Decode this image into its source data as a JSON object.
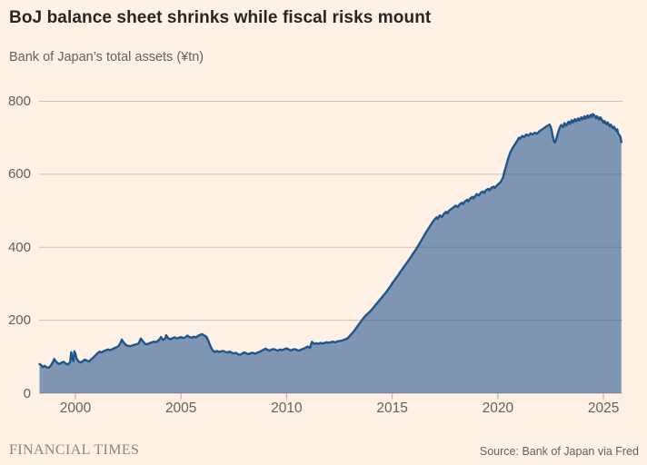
{
  "chart_data": {
    "type": "area",
    "title": "BoJ balance sheet shrinks while fiscal risks mount",
    "subtitle": "Bank of Japan’s total assets (¥tn)",
    "unit": "¥tn",
    "xlim": [
      1998.28,
      2025.9
    ],
    "ylim": [
      0,
      800
    ],
    "xticks": [
      2000,
      2005,
      2010,
      2015,
      2020,
      2025
    ],
    "yticks": [
      0,
      200,
      400,
      600,
      800
    ],
    "grid": "horizontal",
    "legend": "none",
    "theme": {
      "background": "#FFF1E5",
      "line": "#1F558B",
      "fill": "#7E96B3",
      "grid": "rgba(94,84,73,0.32)",
      "tick": "#B0A79C",
      "text": "#66605C",
      "title_text": "#2A2521",
      "brand_text": "#8E8577"
    },
    "series": [
      {
        "name": "Bank of Japan total assets",
        "points": [
          [
            1998.3,
            80
          ],
          [
            1998.4,
            76
          ],
          [
            1998.45,
            72
          ],
          [
            1998.55,
            75
          ],
          [
            1998.65,
            71
          ],
          [
            1998.75,
            70
          ],
          [
            1998.85,
            77
          ],
          [
            1998.95,
            87
          ],
          [
            1999.0,
            94
          ],
          [
            1999.05,
            89
          ],
          [
            1999.15,
            83
          ],
          [
            1999.25,
            80
          ],
          [
            1999.35,
            84
          ],
          [
            1999.45,
            86
          ],
          [
            1999.55,
            81
          ],
          [
            1999.65,
            79
          ],
          [
            1999.75,
            85
          ],
          [
            1999.8,
            112
          ],
          [
            1999.85,
            97
          ],
          [
            1999.9,
            88
          ],
          [
            1999.95,
            115
          ],
          [
            2000.0,
            108
          ],
          [
            2000.05,
            96
          ],
          [
            2000.15,
            87
          ],
          [
            2000.25,
            84
          ],
          [
            2000.35,
            88
          ],
          [
            2000.45,
            92
          ],
          [
            2000.55,
            89
          ],
          [
            2000.65,
            87
          ],
          [
            2000.75,
            93
          ],
          [
            2000.85,
            98
          ],
          [
            2000.95,
            104
          ],
          [
            2001.05,
            110
          ],
          [
            2001.15,
            114
          ],
          [
            2001.25,
            112
          ],
          [
            2001.35,
            116
          ],
          [
            2001.45,
            118
          ],
          [
            2001.55,
            120
          ],
          [
            2001.65,
            118
          ],
          [
            2001.75,
            121
          ],
          [
            2001.85,
            124
          ],
          [
            2001.95,
            126
          ],
          [
            2002.05,
            130
          ],
          [
            2002.15,
            140
          ],
          [
            2002.2,
            147
          ],
          [
            2002.3,
            138
          ],
          [
            2002.4,
            132
          ],
          [
            2002.5,
            130
          ],
          [
            2002.6,
            129
          ],
          [
            2002.7,
            131
          ],
          [
            2002.8,
            133
          ],
          [
            2002.9,
            134
          ],
          [
            2003.0,
            137
          ],
          [
            2003.1,
            150
          ],
          [
            2003.2,
            142
          ],
          [
            2003.3,
            135
          ],
          [
            2003.4,
            134
          ],
          [
            2003.5,
            137
          ],
          [
            2003.6,
            139
          ],
          [
            2003.7,
            141
          ],
          [
            2003.8,
            140
          ],
          [
            2003.9,
            143
          ],
          [
            2004.0,
            149
          ],
          [
            2004.05,
            154
          ],
          [
            2004.15,
            146
          ],
          [
            2004.25,
            150
          ],
          [
            2004.3,
            159
          ],
          [
            2004.4,
            150
          ],
          [
            2004.5,
            148
          ],
          [
            2004.6,
            151
          ],
          [
            2004.7,
            153
          ],
          [
            2004.8,
            150
          ],
          [
            2004.9,
            152
          ],
          [
            2005.0,
            154
          ],
          [
            2005.1,
            151
          ],
          [
            2005.2,
            153
          ],
          [
            2005.3,
            158
          ],
          [
            2005.4,
            154
          ],
          [
            2005.5,
            152
          ],
          [
            2005.6,
            155
          ],
          [
            2005.7,
            153
          ],
          [
            2005.8,
            157
          ],
          [
            2005.9,
            160
          ],
          [
            2006.0,
            162
          ],
          [
            2006.1,
            158
          ],
          [
            2006.2,
            155
          ],
          [
            2006.3,
            143
          ],
          [
            2006.4,
            128
          ],
          [
            2006.5,
            117
          ],
          [
            2006.6,
            113
          ],
          [
            2006.7,
            116
          ],
          [
            2006.8,
            113
          ],
          [
            2006.9,
            115
          ],
          [
            2007.0,
            116
          ],
          [
            2007.1,
            113
          ],
          [
            2007.2,
            112
          ],
          [
            2007.3,
            114
          ],
          [
            2007.4,
            111
          ],
          [
            2007.5,
            109
          ],
          [
            2007.6,
            111
          ],
          [
            2007.7,
            107
          ],
          [
            2007.8,
            105
          ],
          [
            2007.9,
            109
          ],
          [
            2008.0,
            112
          ],
          [
            2008.1,
            109
          ],
          [
            2008.2,
            107
          ],
          [
            2008.3,
            110
          ],
          [
            2008.4,
            111
          ],
          [
            2008.5,
            108
          ],
          [
            2008.6,
            111
          ],
          [
            2008.7,
            113
          ],
          [
            2008.8,
            116
          ],
          [
            2008.9,
            119
          ],
          [
            2009.0,
            122
          ],
          [
            2009.1,
            119
          ],
          [
            2009.2,
            117
          ],
          [
            2009.3,
            120
          ],
          [
            2009.4,
            121
          ],
          [
            2009.5,
            118
          ],
          [
            2009.6,
            117
          ],
          [
            2009.7,
            120
          ],
          [
            2009.8,
            118
          ],
          [
            2009.9,
            121
          ],
          [
            2010.0,
            123
          ],
          [
            2010.1,
            120
          ],
          [
            2010.2,
            117
          ],
          [
            2010.3,
            120
          ],
          [
            2010.4,
            121
          ],
          [
            2010.5,
            118
          ],
          [
            2010.6,
            117
          ],
          [
            2010.7,
            120
          ],
          [
            2010.8,
            122
          ],
          [
            2010.9,
            125
          ],
          [
            2011.0,
            128
          ],
          [
            2011.1,
            124
          ],
          [
            2011.2,
            141
          ],
          [
            2011.3,
            135
          ],
          [
            2011.4,
            137
          ],
          [
            2011.5,
            135
          ],
          [
            2011.6,
            138
          ],
          [
            2011.7,
            136
          ],
          [
            2011.8,
            138
          ],
          [
            2011.9,
            140
          ],
          [
            2012.0,
            138
          ],
          [
            2012.1,
            140
          ],
          [
            2012.2,
            141
          ],
          [
            2012.3,
            139
          ],
          [
            2012.4,
            142
          ],
          [
            2012.5,
            143
          ],
          [
            2012.6,
            144
          ],
          [
            2012.7,
            146
          ],
          [
            2012.8,
            148
          ],
          [
            2012.9,
            151
          ],
          [
            2013.0,
            158
          ],
          [
            2013.1,
            164
          ],
          [
            2013.2,
            171
          ],
          [
            2013.3,
            179
          ],
          [
            2013.4,
            187
          ],
          [
            2013.5,
            195
          ],
          [
            2013.6,
            203
          ],
          [
            2013.7,
            210
          ],
          [
            2013.8,
            216
          ],
          [
            2013.9,
            221
          ],
          [
            2014.0,
            227
          ],
          [
            2014.1,
            234
          ],
          [
            2014.2,
            241
          ],
          [
            2014.3,
            248
          ],
          [
            2014.4,
            255
          ],
          [
            2014.5,
            262
          ],
          [
            2014.6,
            269
          ],
          [
            2014.7,
            276
          ],
          [
            2014.8,
            284
          ],
          [
            2014.9,
            292
          ],
          [
            2015.0,
            301
          ],
          [
            2015.1,
            309
          ],
          [
            2015.2,
            317
          ],
          [
            2015.3,
            325
          ],
          [
            2015.4,
            334
          ],
          [
            2015.5,
            342
          ],
          [
            2015.6,
            350
          ],
          [
            2015.7,
            358
          ],
          [
            2015.8,
            366
          ],
          [
            2015.9,
            375
          ],
          [
            2016.0,
            384
          ],
          [
            2016.1,
            392
          ],
          [
            2016.2,
            401
          ],
          [
            2016.3,
            411
          ],
          [
            2016.4,
            421
          ],
          [
            2016.5,
            431
          ],
          [
            2016.6,
            441
          ],
          [
            2016.7,
            450
          ],
          [
            2016.8,
            459
          ],
          [
            2016.9,
            468
          ],
          [
            2017.0,
            476
          ],
          [
            2017.1,
            482
          ],
          [
            2017.15,
            478
          ],
          [
            2017.25,
            487
          ],
          [
            2017.35,
            483
          ],
          [
            2017.45,
            492
          ],
          [
            2017.55,
            497
          ],
          [
            2017.6,
            493
          ],
          [
            2017.7,
            501
          ],
          [
            2017.8,
            505
          ],
          [
            2017.9,
            509
          ],
          [
            2018.0,
            514
          ],
          [
            2018.1,
            510
          ],
          [
            2018.2,
            518
          ],
          [
            2018.3,
            522
          ],
          [
            2018.35,
            518
          ],
          [
            2018.45,
            526
          ],
          [
            2018.55,
            530
          ],
          [
            2018.6,
            526
          ],
          [
            2018.7,
            534
          ],
          [
            2018.8,
            538
          ],
          [
            2018.85,
            534
          ],
          [
            2018.95,
            542
          ],
          [
            2019.0,
            546
          ],
          [
            2019.1,
            542
          ],
          [
            2019.2,
            550
          ],
          [
            2019.3,
            553
          ],
          [
            2019.35,
            549
          ],
          [
            2019.45,
            557
          ],
          [
            2019.55,
            560
          ],
          [
            2019.6,
            556
          ],
          [
            2019.7,
            563
          ],
          [
            2019.8,
            566
          ],
          [
            2019.85,
            562
          ],
          [
            2019.95,
            569
          ],
          [
            2020.05,
            574
          ],
          [
            2020.15,
            580
          ],
          [
            2020.25,
            592
          ],
          [
            2020.3,
            604
          ],
          [
            2020.4,
            625
          ],
          [
            2020.5,
            645
          ],
          [
            2020.6,
            661
          ],
          [
            2020.7,
            672
          ],
          [
            2020.8,
            681
          ],
          [
            2020.9,
            690
          ],
          [
            2021.0,
            700
          ],
          [
            2021.05,
            697
          ],
          [
            2021.15,
            705
          ],
          [
            2021.25,
            702
          ],
          [
            2021.35,
            709
          ],
          [
            2021.45,
            706
          ],
          [
            2021.55,
            712
          ],
          [
            2021.65,
            709
          ],
          [
            2021.75,
            714
          ],
          [
            2021.85,
            711
          ],
          [
            2021.95,
            717
          ],
          [
            2022.05,
            721
          ],
          [
            2022.15,
            725
          ],
          [
            2022.25,
            729
          ],
          [
            2022.35,
            733
          ],
          [
            2022.45,
            736
          ],
          [
            2022.5,
            730
          ],
          [
            2022.55,
            720
          ],
          [
            2022.6,
            704
          ],
          [
            2022.65,
            692
          ],
          [
            2022.7,
            687
          ],
          [
            2022.75,
            694
          ],
          [
            2022.8,
            703
          ],
          [
            2022.85,
            714
          ],
          [
            2022.9,
            723
          ],
          [
            2022.95,
            730
          ],
          [
            2023.0,
            735
          ],
          [
            2023.1,
            729
          ],
          [
            2023.15,
            740
          ],
          [
            2023.25,
            734
          ],
          [
            2023.35,
            744
          ],
          [
            2023.4,
            738
          ],
          [
            2023.5,
            748
          ],
          [
            2023.55,
            742
          ],
          [
            2023.65,
            751
          ],
          [
            2023.7,
            745
          ],
          [
            2023.8,
            753
          ],
          [
            2023.85,
            747
          ],
          [
            2023.95,
            756
          ],
          [
            2024.0,
            750
          ],
          [
            2024.1,
            759
          ],
          [
            2024.15,
            752
          ],
          [
            2024.25,
            761
          ],
          [
            2024.3,
            755
          ],
          [
            2024.4,
            763
          ],
          [
            2024.45,
            757
          ],
          [
            2024.5,
            765
          ],
          [
            2024.6,
            759
          ],
          [
            2024.65,
            753
          ],
          [
            2024.7,
            759
          ],
          [
            2024.8,
            750
          ],
          [
            2024.85,
            756
          ],
          [
            2024.95,
            747
          ],
          [
            2025.0,
            741
          ],
          [
            2025.05,
            746
          ],
          [
            2025.15,
            737
          ],
          [
            2025.2,
            742
          ],
          [
            2025.3,
            731
          ],
          [
            2025.35,
            736
          ],
          [
            2025.45,
            726
          ],
          [
            2025.5,
            730
          ],
          [
            2025.6,
            719
          ],
          [
            2025.65,
            723
          ],
          [
            2025.7,
            711
          ],
          [
            2025.8,
            703
          ],
          [
            2025.85,
            688
          ]
        ]
      }
    ]
  },
  "footer": {
    "brand": "FINANCIAL TIMES",
    "source": "Source: Bank of Japan via Fred"
  }
}
